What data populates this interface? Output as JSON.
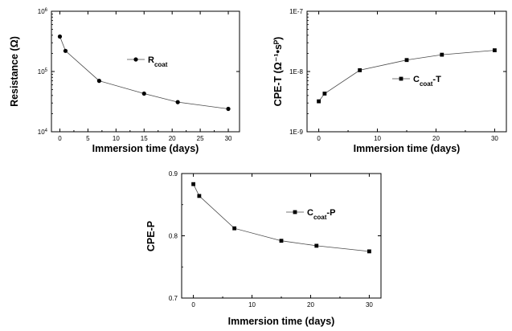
{
  "chart_data": [
    {
      "type": "line",
      "xlabel": "Immersion time (days)",
      "ylabel": "Resistance (Ω)",
      "xlim": [
        -1.5,
        32
      ],
      "ylim": [
        10000,
        1000000
      ],
      "yscale": "log",
      "xticks": [
        0,
        5,
        10,
        15,
        20,
        25,
        30
      ],
      "yticks": [
        {
          "value": 10000,
          "base": "10",
          "exp": "4"
        },
        {
          "value": 100000,
          "base": "10",
          "exp": "5"
        },
        {
          "value": 1000000,
          "base": "10",
          "exp": "6"
        }
      ],
      "marker": "circle",
      "legend_position": "middle",
      "series": [
        {
          "name": "R",
          "name_sub": "coat",
          "x": [
            0,
            1,
            7,
            15,
            21,
            30
          ],
          "y": [
            380000,
            220000,
            70000,
            43000,
            31000,
            24000
          ]
        }
      ]
    },
    {
      "type": "line",
      "xlabel": "Immersion time (days)",
      "ylabel": "CPE-T (Ω⁻¹•sᴾ)",
      "xlim": [
        -2,
        32
      ],
      "ylim": [
        1e-09,
        1e-07
      ],
      "yscale": "log",
      "xticks": [
        0,
        10,
        20,
        30
      ],
      "yticks": [
        {
          "value": 1e-09,
          "label": "1E-9"
        },
        {
          "value": 1e-08,
          "label": "1E-8"
        },
        {
          "value": 1e-07,
          "label": "1E-7"
        }
      ],
      "marker": "square",
      "legend_position": "middle",
      "series": [
        {
          "name": "C",
          "name_sub": "coat",
          "name_suffix": "-T",
          "x": [
            0,
            1,
            7,
            15,
            21,
            30
          ],
          "y": [
            3.2e-09,
            4.3e-09,
            1.05e-08,
            1.55e-08,
            1.9e-08,
            2.25e-08
          ]
        }
      ]
    },
    {
      "type": "line",
      "xlabel": "Immersion time (days)",
      "ylabel": "CPE-P",
      "xlim": [
        -2,
        32
      ],
      "ylim": [
        0.7,
        0.9
      ],
      "yscale": "linear",
      "xticks": [
        0,
        10,
        20,
        30
      ],
      "yticks": [
        {
          "value": 0.7,
          "label": "0.7"
        },
        {
          "value": 0.8,
          "label": "0.8"
        },
        {
          "value": 0.9,
          "label": "0.9"
        }
      ],
      "marker": "square",
      "legend_position": "top-right",
      "series": [
        {
          "name": "C",
          "name_sub": "coat",
          "name_suffix": "-P",
          "x": [
            0,
            1,
            7,
            15,
            21,
            30
          ],
          "y": [
            0.883,
            0.864,
            0.812,
            0.792,
            0.784,
            0.775
          ]
        }
      ]
    }
  ]
}
